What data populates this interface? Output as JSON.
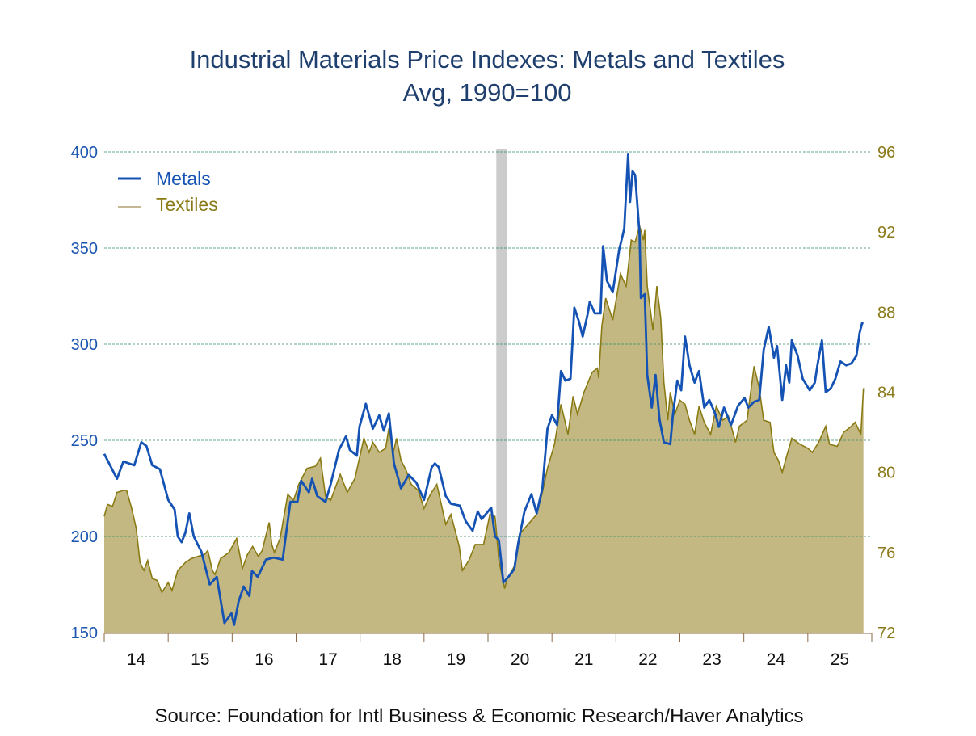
{
  "chart_data": {
    "type": "line",
    "title": "Industrial Materials Price Indexes: Metals and Textiles",
    "subtitle": "Avg, 1990=100",
    "source": "Source:  Foundation for Intl Business & Economic Research/Haver Analytics",
    "x_tick_labels": [
      "14",
      "15",
      "16",
      "17",
      "18",
      "19",
      "20",
      "21",
      "22",
      "23",
      "24",
      "25"
    ],
    "x_range": [
      2014,
      2026
    ],
    "left_axis": {
      "range": [
        150,
        400
      ],
      "ticks": [
        "400",
        "350",
        "300",
        "250",
        "200",
        "150"
      ],
      "color": "#1a55b0"
    },
    "right_axis": {
      "range": [
        72,
        96
      ],
      "ticks": [
        "96",
        "92",
        "88",
        "84",
        "80",
        "76",
        "72"
      ],
      "color": "#8a7a1a"
    },
    "grid": "horizontal dashed at left-axis ticks",
    "legend": {
      "placement": "top-left",
      "items": [
        "Metals",
        "Textiles"
      ]
    },
    "recession_shading": [
      2020.13,
      2020.3
    ],
    "colors": {
      "metals": "#1452b4",
      "textiles_line": "#8a7a14",
      "textiles_fill": "#c4b882",
      "recession": "#cccccc",
      "grid": "#2e8a6e",
      "title": "#1f3f6e"
    },
    "series": [
      {
        "name": "Metals",
        "axis": "left",
        "style": "line",
        "points": [
          [
            2014.0,
            243
          ],
          [
            2014.2,
            230
          ],
          [
            2014.3,
            239
          ],
          [
            2014.47,
            237
          ],
          [
            2014.58,
            249
          ],
          [
            2014.66,
            247
          ],
          [
            2014.75,
            237
          ],
          [
            2014.87,
            235
          ],
          [
            2015.0,
            219
          ],
          [
            2015.1,
            214
          ],
          [
            2015.15,
            200
          ],
          [
            2015.21,
            197
          ],
          [
            2015.27,
            202
          ],
          [
            2015.33,
            212
          ],
          [
            2015.4,
            200
          ],
          [
            2015.52,
            192
          ],
          [
            2015.65,
            175
          ],
          [
            2015.76,
            179
          ],
          [
            2015.88,
            155
          ],
          [
            2015.99,
            160
          ],
          [
            2016.03,
            154
          ],
          [
            2016.1,
            166
          ],
          [
            2016.18,
            174
          ],
          [
            2016.27,
            169
          ],
          [
            2016.31,
            182
          ],
          [
            2016.4,
            179
          ],
          [
            2016.53,
            188
          ],
          [
            2016.65,
            189
          ],
          [
            2016.79,
            188
          ],
          [
            2016.83,
            198
          ],
          [
            2016.91,
            218
          ],
          [
            2017.02,
            218
          ],
          [
            2017.08,
            229
          ],
          [
            2017.2,
            223
          ],
          [
            2017.25,
            230
          ],
          [
            2017.33,
            221
          ],
          [
            2017.46,
            218
          ],
          [
            2017.54,
            227
          ],
          [
            2017.67,
            245
          ],
          [
            2017.78,
            252
          ],
          [
            2017.84,
            245
          ],
          [
            2017.95,
            242
          ],
          [
            2017.99,
            257
          ],
          [
            2018.09,
            269
          ],
          [
            2018.2,
            256
          ],
          [
            2018.3,
            263
          ],
          [
            2018.37,
            255
          ],
          [
            2018.45,
            264
          ],
          [
            2018.53,
            238
          ],
          [
            2018.64,
            225
          ],
          [
            2018.76,
            232
          ],
          [
            2018.88,
            228
          ],
          [
            2019.0,
            219
          ],
          [
            2019.12,
            236
          ],
          [
            2019.17,
            238
          ],
          [
            2019.23,
            236
          ],
          [
            2019.34,
            221
          ],
          [
            2019.42,
            217
          ],
          [
            2019.56,
            216
          ],
          [
            2019.65,
            208
          ],
          [
            2019.76,
            203
          ],
          [
            2019.84,
            213
          ],
          [
            2019.9,
            209
          ],
          [
            2020.05,
            215
          ],
          [
            2020.11,
            200
          ],
          [
            2020.17,
            198
          ],
          [
            2020.24,
            176
          ],
          [
            2020.32,
            179
          ],
          [
            2020.41,
            183
          ],
          [
            2020.47,
            196
          ],
          [
            2020.57,
            213
          ],
          [
            2020.68,
            222
          ],
          [
            2020.76,
            212
          ],
          [
            2020.85,
            225
          ],
          [
            2020.93,
            256
          ],
          [
            2021.0,
            263
          ],
          [
            2021.08,
            258
          ],
          [
            2021.14,
            286
          ],
          [
            2021.21,
            281
          ],
          [
            2021.29,
            282
          ],
          [
            2021.35,
            319
          ],
          [
            2021.42,
            312
          ],
          [
            2021.48,
            304
          ],
          [
            2021.56,
            316
          ],
          [
            2021.59,
            322
          ],
          [
            2021.67,
            316
          ],
          [
            2021.76,
            316
          ],
          [
            2021.8,
            351
          ],
          [
            2021.86,
            333
          ],
          [
            2021.95,
            327
          ],
          [
            2022.05,
            349
          ],
          [
            2022.13,
            360
          ],
          [
            2022.19,
            399
          ],
          [
            2022.22,
            374
          ],
          [
            2022.26,
            390
          ],
          [
            2022.3,
            388
          ],
          [
            2022.37,
            357
          ],
          [
            2022.39,
            324
          ],
          [
            2022.45,
            326
          ],
          [
            2022.49,
            284
          ],
          [
            2022.56,
            267
          ],
          [
            2022.62,
            284
          ],
          [
            2022.68,
            261
          ],
          [
            2022.75,
            249
          ],
          [
            2022.85,
            248
          ],
          [
            2022.89,
            263
          ],
          [
            2022.96,
            281
          ],
          [
            2023.02,
            276
          ],
          [
            2023.08,
            304
          ],
          [
            2023.15,
            289
          ],
          [
            2023.23,
            280
          ],
          [
            2023.3,
            286
          ],
          [
            2023.38,
            267
          ],
          [
            2023.46,
            271
          ],
          [
            2023.55,
            264
          ],
          [
            2023.61,
            257
          ],
          [
            2023.69,
            267
          ],
          [
            2023.8,
            258
          ],
          [
            2023.91,
            268
          ],
          [
            2024.01,
            272
          ],
          [
            2024.07,
            267
          ],
          [
            2024.16,
            270
          ],
          [
            2024.24,
            271
          ],
          [
            2024.31,
            297
          ],
          [
            2024.39,
            309
          ],
          [
            2024.47,
            293
          ],
          [
            2024.52,
            299
          ],
          [
            2024.6,
            271
          ],
          [
            2024.66,
            289
          ],
          [
            2024.71,
            280
          ],
          [
            2024.75,
            302
          ],
          [
            2024.84,
            294
          ],
          [
            2024.92,
            282
          ],
          [
            2025.03,
            276
          ],
          [
            2025.11,
            280
          ],
          [
            2025.15,
            289
          ],
          [
            2025.22,
            302
          ],
          [
            2025.28,
            275
          ],
          [
            2025.36,
            277
          ],
          [
            2025.43,
            282
          ],
          [
            2025.51,
            291
          ],
          [
            2025.6,
            289
          ],
          [
            2025.68,
            290
          ],
          [
            2025.76,
            294
          ],
          [
            2025.81,
            306
          ],
          [
            2025.85,
            311
          ],
          [
            2025.87,
            311
          ]
        ]
      },
      {
        "name": "Textiles",
        "axis": "right",
        "style": "area",
        "points": [
          [
            2014.0,
            77.8
          ],
          [
            2014.05,
            78.4
          ],
          [
            2014.13,
            78.3
          ],
          [
            2014.2,
            79.0
          ],
          [
            2014.3,
            79.1
          ],
          [
            2014.35,
            79.1
          ],
          [
            2014.43,
            78.2
          ],
          [
            2014.5,
            77.2
          ],
          [
            2014.56,
            75.5
          ],
          [
            2014.62,
            75.1
          ],
          [
            2014.68,
            75.6
          ],
          [
            2014.75,
            74.7
          ],
          [
            2014.83,
            74.6
          ],
          [
            2014.9,
            74.0
          ],
          [
            2015.0,
            74.5
          ],
          [
            2015.06,
            74.1
          ],
          [
            2015.15,
            75.1
          ],
          [
            2015.27,
            75.5
          ],
          [
            2015.36,
            75.7
          ],
          [
            2015.46,
            75.8
          ],
          [
            2015.57,
            75.9
          ],
          [
            2015.62,
            76.1
          ],
          [
            2015.69,
            75.1
          ],
          [
            2015.73,
            74.9
          ],
          [
            2015.82,
            75.7
          ],
          [
            2015.95,
            76.0
          ],
          [
            2016.07,
            76.7
          ],
          [
            2016.16,
            75.2
          ],
          [
            2016.24,
            75.9
          ],
          [
            2016.32,
            76.3
          ],
          [
            2016.41,
            75.8
          ],
          [
            2016.47,
            76.1
          ],
          [
            2016.58,
            77.5
          ],
          [
            2016.62,
            76.4
          ],
          [
            2016.66,
            76.0
          ],
          [
            2016.75,
            76.7
          ],
          [
            2016.87,
            78.9
          ],
          [
            2016.96,
            78.6
          ],
          [
            2017.04,
            79.4
          ],
          [
            2017.17,
            80.2
          ],
          [
            2017.3,
            80.3
          ],
          [
            2017.38,
            80.7
          ],
          [
            2017.46,
            78.8
          ],
          [
            2017.54,
            78.6
          ],
          [
            2017.69,
            79.9
          ],
          [
            2017.8,
            79.0
          ],
          [
            2017.92,
            79.7
          ],
          [
            2018.06,
            81.7
          ],
          [
            2018.14,
            81.0
          ],
          [
            2018.2,
            81.5
          ],
          [
            2018.3,
            81.0
          ],
          [
            2018.4,
            81.2
          ],
          [
            2018.45,
            82.2
          ],
          [
            2018.52,
            81.0
          ],
          [
            2018.57,
            81.7
          ],
          [
            2018.64,
            80.6
          ],
          [
            2018.72,
            80.1
          ],
          [
            2018.8,
            79.4
          ],
          [
            2018.91,
            79.1
          ],
          [
            2019.0,
            78.2
          ],
          [
            2019.1,
            78.9
          ],
          [
            2019.2,
            79.4
          ],
          [
            2019.34,
            77.4
          ],
          [
            2019.42,
            77.9
          ],
          [
            2019.55,
            76.3
          ],
          [
            2019.6,
            75.1
          ],
          [
            2019.7,
            75.6
          ],
          [
            2019.8,
            76.4
          ],
          [
            2019.93,
            76.4
          ],
          [
            2020.03,
            77.9
          ],
          [
            2020.11,
            77.8
          ],
          [
            2020.17,
            75.6
          ],
          [
            2020.26,
            74.2
          ],
          [
            2020.3,
            74.7
          ],
          [
            2020.41,
            75.3
          ],
          [
            2020.49,
            76.9
          ],
          [
            2020.57,
            77.2
          ],
          [
            2020.68,
            77.6
          ],
          [
            2020.76,
            77.9
          ],
          [
            2020.85,
            79.0
          ],
          [
            2020.93,
            80.2
          ],
          [
            2021.04,
            81.4
          ],
          [
            2021.14,
            83.4
          ],
          [
            2021.25,
            81.9
          ],
          [
            2021.33,
            83.8
          ],
          [
            2021.4,
            82.9
          ],
          [
            2021.5,
            84.0
          ],
          [
            2021.63,
            85.0
          ],
          [
            2021.71,
            85.2
          ],
          [
            2021.73,
            84.7
          ],
          [
            2021.78,
            87.3
          ],
          [
            2021.84,
            88.7
          ],
          [
            2021.95,
            87.6
          ],
          [
            2022.07,
            89.9
          ],
          [
            2022.16,
            89.3
          ],
          [
            2022.24,
            91.6
          ],
          [
            2022.3,
            91.5
          ],
          [
            2022.37,
            92.3
          ],
          [
            2022.43,
            91.6
          ],
          [
            2022.45,
            92.1
          ],
          [
            2022.49,
            89.3
          ],
          [
            2022.58,
            87.1
          ],
          [
            2022.64,
            89.3
          ],
          [
            2022.7,
            87.7
          ],
          [
            2022.75,
            84.5
          ],
          [
            2022.81,
            82.6
          ],
          [
            2022.85,
            84.0
          ],
          [
            2022.92,
            82.9
          ],
          [
            2023.0,
            83.6
          ],
          [
            2023.08,
            83.4
          ],
          [
            2023.15,
            82.6
          ],
          [
            2023.23,
            81.9
          ],
          [
            2023.3,
            83.3
          ],
          [
            2023.38,
            82.5
          ],
          [
            2023.48,
            81.9
          ],
          [
            2023.57,
            83.3
          ],
          [
            2023.67,
            82.6
          ],
          [
            2023.76,
            82.8
          ],
          [
            2023.87,
            81.5
          ],
          [
            2023.93,
            82.3
          ],
          [
            2024.05,
            82.6
          ],
          [
            2024.16,
            85.3
          ],
          [
            2024.24,
            84.2
          ],
          [
            2024.31,
            82.6
          ],
          [
            2024.41,
            82.5
          ],
          [
            2024.47,
            81.0
          ],
          [
            2024.54,
            80.6
          ],
          [
            2024.6,
            80.0
          ],
          [
            2024.66,
            80.7
          ],
          [
            2024.75,
            81.7
          ],
          [
            2024.88,
            81.4
          ],
          [
            2025.0,
            81.2
          ],
          [
            2025.07,
            81.0
          ],
          [
            2025.17,
            81.5
          ],
          [
            2025.28,
            82.3
          ],
          [
            2025.34,
            81.4
          ],
          [
            2025.46,
            81.3
          ],
          [
            2025.56,
            82.0
          ],
          [
            2025.68,
            82.3
          ],
          [
            2025.74,
            82.5
          ],
          [
            2025.83,
            81.9
          ],
          [
            2025.87,
            84.2
          ]
        ]
      }
    ]
  }
}
